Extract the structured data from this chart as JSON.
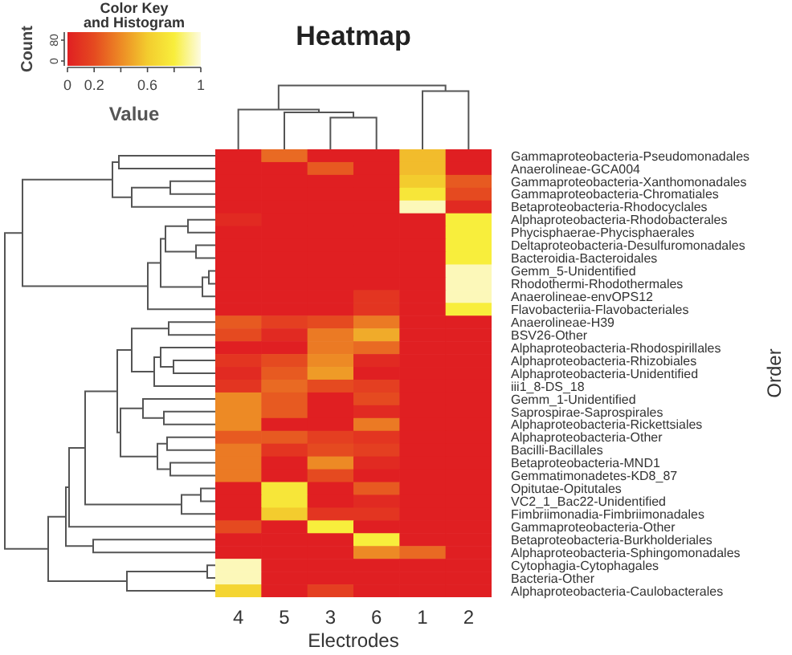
{
  "chart_data": {
    "type": "heatmap",
    "title": "Heatmap",
    "xlabel": "Electrodes",
    "ylabel": "Order",
    "legend_title": "Color Key and Histogram",
    "clabel": "Value",
    "annotations": [
      "Count",
      "0",
      "80"
    ],
    "categories": [
      "4",
      "5",
      "3",
      "6",
      "1",
      "2"
    ],
    "y_categories": [
      "Gammaproteobacteria-Pseudomonadales",
      "Anaerolineae-GCA004",
      "Gammaproteobacteria-Xanthomonadales",
      "Gammaproteobacteria-Chromatiales",
      "Betaproteobacteria-Rhodocyclales",
      "Alphaproteobacteria-Rhodobacterales",
      "Phycisphaerae-Phycisphaerales",
      "Deltaproteobacteria-Desulfuromonadales",
      "Bacteroidia-Bacteroidales",
      "Gemm_5-Unidentified",
      "Rhodothermi-Rhodothermales",
      "Anaerolineae-envOPS12",
      "Flavobacteriia-Flavobacteriales",
      "Anaerolineae-H39",
      "BSV26-Other",
      "Alphaproteobacteria-Rhodospirillales",
      "Alphaproteobacteria-Rhizobiales",
      "Alphaproteobacteria-Unidentified",
      "iii1_8-DS_18",
      "Gemm_1-Unidentified",
      "Saprospirae-Saprospirales",
      "Alphaproteobacteria-Rickettsiales",
      "Alphaproteobacteria-Other",
      "Bacilli-Bacillales",
      "Betaproteobacteria-MND1",
      "Gemmatimonadetes-KD8_87",
      "Opitutae-Opitutales",
      "VC2_1_Bac22-Unidentified",
      "Fimbriimonadia-Fimbriimonadales",
      "Gammaproteobacteria-Other",
      "Betaproteobacteria-Burkholderiales",
      "Alphaproteobacteria-Sphingomonadales",
      "Cytophagia-Cytophagales",
      "Bacteria-Other",
      "Alphaproteobacteria-Caulobacterales"
    ],
    "cells": [
      [
        0,
        0.3,
        0,
        0,
        0.55,
        0
      ],
      [
        0,
        0,
        0.25,
        0,
        0.55,
        0
      ],
      [
        0,
        0,
        0,
        0,
        0.6,
        0.25
      ],
      [
        0,
        0,
        0,
        0,
        0.75,
        0.2
      ],
      [
        0,
        0,
        0,
        0,
        0.95,
        0.05
      ],
      [
        0.05,
        0,
        0,
        0,
        0,
        0.8
      ],
      [
        0,
        0,
        0,
        0,
        0,
        0.8
      ],
      [
        0,
        0,
        0,
        0,
        0,
        0.8
      ],
      [
        0,
        0,
        0,
        0,
        0,
        0.8
      ],
      [
        0,
        0,
        0,
        0,
        0,
        0.95
      ],
      [
        0,
        0,
        0,
        0,
        0,
        0.95
      ],
      [
        0,
        0,
        0,
        0.1,
        0,
        0.95
      ],
      [
        0,
        0,
        0,
        0.1,
        0,
        0.8
      ],
      [
        0.25,
        0.15,
        0.2,
        0.35,
        0,
        0
      ],
      [
        0.2,
        0.05,
        0.35,
        0.5,
        0,
        0
      ],
      [
        0,
        0,
        0.35,
        0.3,
        0,
        0
      ],
      [
        0.1,
        0.2,
        0.4,
        0.05,
        0,
        0
      ],
      [
        0.05,
        0.25,
        0.45,
        0,
        0,
        0
      ],
      [
        0.1,
        0.3,
        0.2,
        0.15,
        0,
        0
      ],
      [
        0.4,
        0.25,
        0,
        0.2,
        0,
        0
      ],
      [
        0.4,
        0.25,
        0,
        0.05,
        0,
        0
      ],
      [
        0.4,
        0,
        0,
        0.35,
        0,
        0
      ],
      [
        0.25,
        0.25,
        0.15,
        0.1,
        0,
        0
      ],
      [
        0.35,
        0.1,
        0.2,
        0.15,
        0,
        0
      ],
      [
        0.35,
        0,
        0.4,
        0.05,
        0,
        0
      ],
      [
        0.35,
        0,
        0.2,
        0,
        0,
        0
      ],
      [
        0,
        0.75,
        0,
        0.25,
        0,
        0
      ],
      [
        0,
        0.75,
        0,
        0.05,
        0,
        0
      ],
      [
        0,
        0.6,
        0.1,
        0.1,
        0,
        0
      ],
      [
        0.2,
        0,
        0.8,
        0,
        0,
        0
      ],
      [
        0,
        0,
        0,
        0.8,
        0,
        0
      ],
      [
        0,
        0,
        0,
        0.4,
        0.3,
        0
      ],
      [
        0.95,
        0,
        0,
        0,
        0,
        0
      ],
      [
        0.95,
        0,
        0,
        0,
        0,
        0
      ],
      [
        0.65,
        0,
        0.15,
        0,
        0,
        0
      ]
    ],
    "clim": [
      0,
      1
    ],
    "cticks": [
      0,
      0.2,
      {
        "value": 0.4,
        "label": null
      },
      0.6,
      {
        "value": 0.8,
        "label": null
      },
      1
    ]
  }
}
